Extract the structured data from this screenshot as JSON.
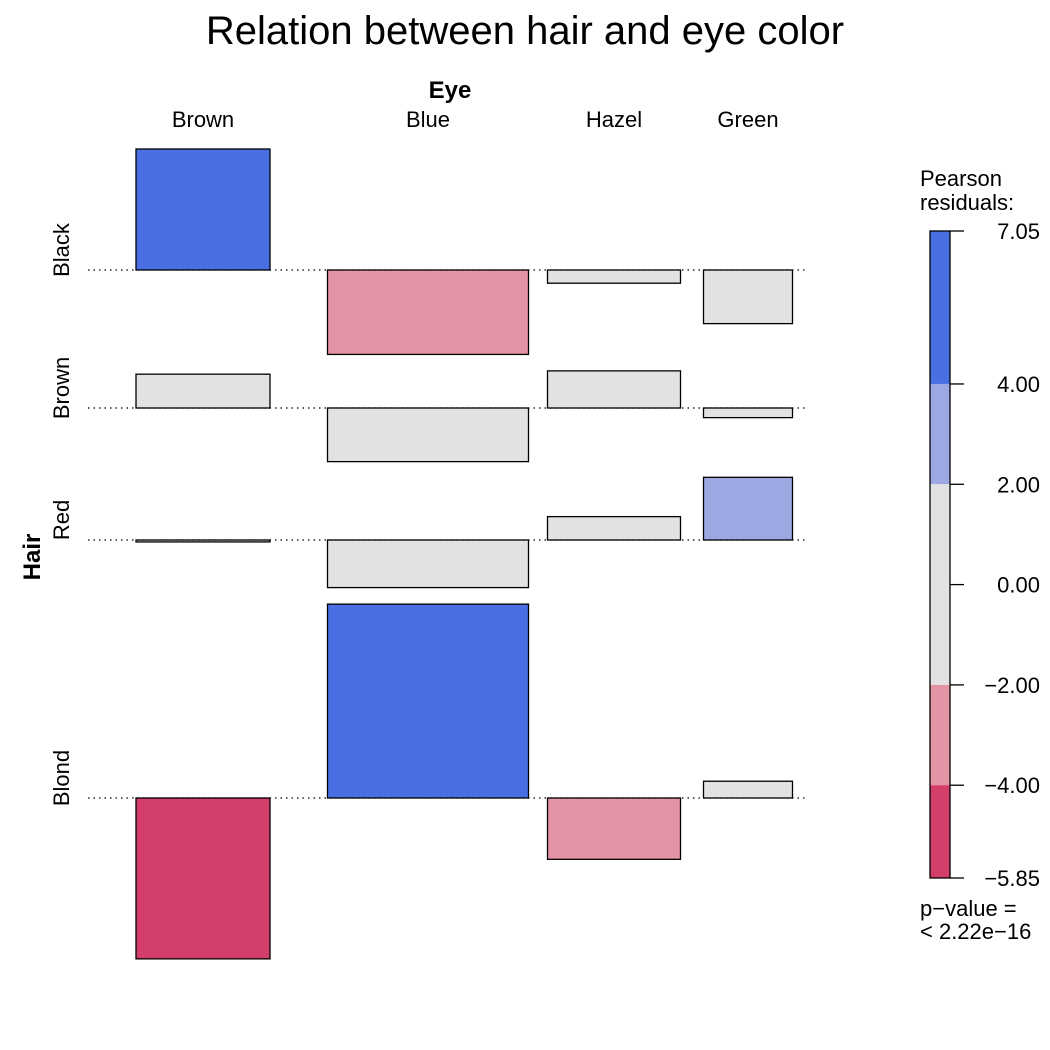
{
  "chart_data": {
    "type": "association",
    "title": "Relation between hair and eye color",
    "col_variable": "Eye",
    "row_variable": "Hair",
    "columns": [
      "Brown",
      "Blue",
      "Hazel",
      "Green"
    ],
    "rows": [
      "Black",
      "Brown",
      "Red",
      "Blond"
    ],
    "cells": [
      {
        "row": "Black",
        "col": "Brown",
        "residual": 4.4
      },
      {
        "row": "Black",
        "col": "Blue",
        "residual": -3.07
      },
      {
        "row": "Black",
        "col": "Hazel",
        "residual": -0.48
      },
      {
        "row": "Black",
        "col": "Green",
        "residual": -1.95
      },
      {
        "row": "Brown",
        "col": "Brown",
        "residual": 1.23
      },
      {
        "row": "Brown",
        "col": "Blue",
        "residual": -1.95
      },
      {
        "row": "Brown",
        "col": "Hazel",
        "residual": 1.35
      },
      {
        "row": "Brown",
        "col": "Green",
        "residual": -0.35
      },
      {
        "row": "Red",
        "col": "Brown",
        "residual": -0.07
      },
      {
        "row": "Red",
        "col": "Blue",
        "residual": -1.73
      },
      {
        "row": "Red",
        "col": "Hazel",
        "residual": 0.85
      },
      {
        "row": "Red",
        "col": "Green",
        "residual": 2.28
      },
      {
        "row": "Blond",
        "col": "Brown",
        "residual": -5.85
      },
      {
        "row": "Blond",
        "col": "Blue",
        "residual": 7.05
      },
      {
        "row": "Blond",
        "col": "Hazel",
        "residual": -2.23
      },
      {
        "row": "Blond",
        "col": "Green",
        "residual": 0.61
      }
    ],
    "legend": {
      "title_line1": "Pearson",
      "title_line2": "residuals:",
      "ticks": [
        "7.05",
        "4.00",
        "2.00",
        "0.00",
        "−2.00",
        "−4.00",
        "−5.85"
      ],
      "range": [
        -5.85,
        7.05
      ],
      "bands": [
        {
          "from": 4,
          "to": 7.05,
          "color": "#4a6fe3"
        },
        {
          "from": 2,
          "to": 4,
          "color": "#9da8e2"
        },
        {
          "from": -2,
          "to": 2,
          "color": "#e2e2e2"
        },
        {
          "from": -4,
          "to": -2,
          "color": "#e495a5"
        },
        {
          "from": -5.85,
          "to": -4,
          "color": "#d33f6a"
        }
      ],
      "pvalue_line1": "p−value =",
      "pvalue_line2": "< 2.22e−16",
      "placement": "right"
    }
  }
}
